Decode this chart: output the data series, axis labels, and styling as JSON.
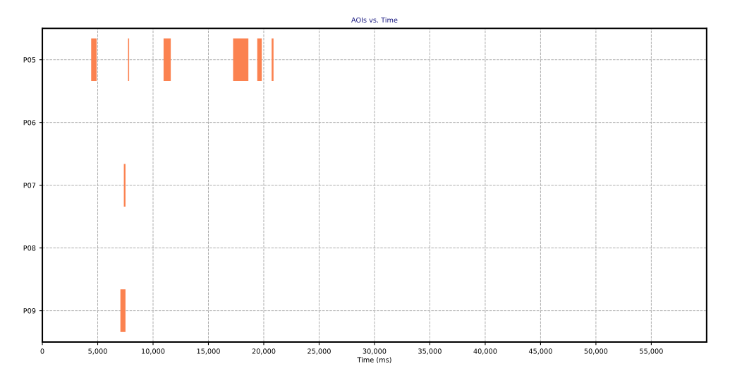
{
  "chart_data": {
    "type": "bar",
    "orientation": "horizontal",
    "title": "AOIs vs. Time",
    "xlabel": "Time (ms)",
    "categories": [
      "P05",
      "P06",
      "P07",
      "P08",
      "P09"
    ],
    "series": [
      {
        "color": "#fb8250",
        "base": [
          4410,
          null,
          7360,
          null,
          7050
        ],
        "values": [
          490,
          null,
          150,
          null,
          460
        ]
      },
      {
        "color": "#fb8250",
        "base": [
          7740,
          null,
          null,
          null,
          null
        ],
        "values": [
          100,
          null,
          null,
          null,
          null
        ]
      },
      {
        "color": "#fb8250",
        "base": [
          10950,
          null,
          null,
          null,
          null
        ],
        "values": [
          650,
          null,
          null,
          null,
          null
        ]
      },
      {
        "color": "#fb8250",
        "base": [
          17230,
          null,
          null,
          null,
          null
        ],
        "values": [
          1380,
          null,
          null,
          null,
          null
        ]
      },
      {
        "color": "#fb8250",
        "base": [
          19410,
          null,
          null,
          null,
          null
        ],
        "values": [
          410,
          null,
          null,
          null,
          null
        ]
      },
      {
        "color": "#fb8250",
        "base": [
          20710,
          null,
          null,
          null,
          null
        ],
        "values": [
          170,
          null,
          null,
          null,
          null
        ]
      }
    ],
    "xlim": [
      0,
      60000
    ],
    "xticks": [
      0,
      {
        "value": 5000,
        "label": "5,000"
      },
      {
        "value": 10000,
        "label": "10,000"
      },
      {
        "value": 15000,
        "label": "15,000"
      },
      {
        "value": 20000,
        "label": "20,000"
      },
      {
        "value": 25000,
        "label": "25,000"
      },
      {
        "value": 30000,
        "label": "30,000"
      },
      {
        "value": 35000,
        "label": "35,000"
      },
      {
        "value": 40000,
        "label": "40,000"
      },
      {
        "value": 45000,
        "label": "45,000"
      },
      {
        "value": 50000,
        "label": "50,000"
      },
      {
        "value": 55000,
        "label": "55,000"
      }
    ],
    "grid": true
  }
}
